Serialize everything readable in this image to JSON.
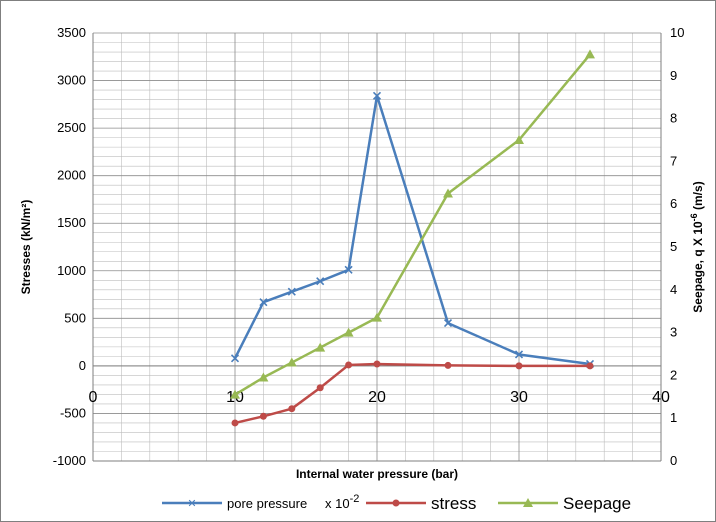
{
  "chart_data": {
    "type": "line",
    "xlabel": "Internal water pressure (bar)",
    "ylabel": "Stresses  (kN/m²)",
    "y2label_parts": [
      "Seepage, q X 10",
      "-6",
      " (m/s)"
    ],
    "xlim": [
      0,
      40
    ],
    "ylim": [
      -1000,
      3500
    ],
    "y2lim": [
      0,
      10
    ],
    "x_ticks": [
      "0",
      "10",
      "20",
      "30",
      "40"
    ],
    "y_ticks": [
      "3500",
      "3000",
      "2500",
      "2000",
      "1500",
      "1000",
      "500",
      "0",
      "-500",
      "-1000"
    ],
    "y2_ticks": [
      "10",
      "9",
      "8",
      "7",
      "6",
      "5",
      "4",
      "3",
      "2",
      "1",
      "0"
    ],
    "grid": true,
    "legend_position": "bottom",
    "series": [
      {
        "name": "pore pressure",
        "legend_suffix": "x 10",
        "legend_suffix_sup": "-2",
        "axis": "left",
        "color": "#4a7ebb",
        "marker": "x",
        "x": [
          10,
          12,
          14,
          16,
          18,
          20,
          25,
          30,
          35
        ],
        "values": [
          80,
          670,
          780,
          890,
          1010,
          2840,
          450,
          120,
          20
        ]
      },
      {
        "name": "stress",
        "axis": "left",
        "color": "#be4b48",
        "marker": "circle",
        "x": [
          10,
          12,
          14,
          16,
          18,
          20,
          25,
          30,
          35
        ],
        "values": [
          -600,
          -530,
          -450,
          -230,
          10,
          20,
          5,
          0,
          0
        ]
      },
      {
        "name": "Seepage",
        "axis": "right",
        "color": "#98b954",
        "marker": "triangle",
        "x": [
          10,
          12,
          14,
          16,
          18,
          20,
          25,
          30,
          35
        ],
        "values": [
          1.55,
          1.95,
          2.3,
          2.65,
          3.0,
          3.35,
          6.25,
          7.5,
          9.5
        ]
      }
    ]
  }
}
